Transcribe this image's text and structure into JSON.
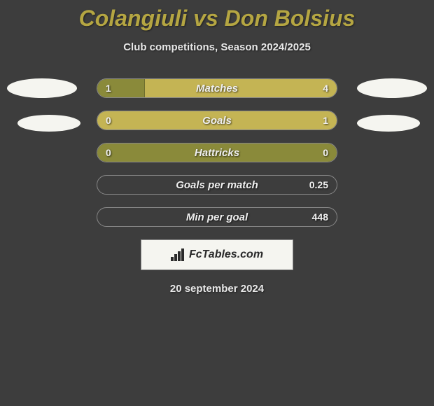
{
  "title": "Colangiuli vs Don Bolsius",
  "subtitle": "Club competitions, Season 2024/2025",
  "date": "20 september 2024",
  "logo_text": "FcTables.com",
  "colors": {
    "background": "#3d3d3d",
    "title_color": "#b5a642",
    "text_color": "#e8e8e8",
    "bar_left_fill": "#8a8a3a",
    "bar_right_fill": "#c4b454",
    "logo_bg": "#f5f5f0",
    "ellipse_color": "#f5f5f0"
  },
  "stats": [
    {
      "label": "Matches",
      "left_value": "1",
      "right_value": "4",
      "left_width_pct": 20,
      "right_width_pct": 80,
      "mode": "split"
    },
    {
      "label": "Goals",
      "left_value": "0",
      "right_value": "1",
      "left_width_pct": 0,
      "right_width_pct": 100,
      "mode": "full-right"
    },
    {
      "label": "Hattricks",
      "left_value": "0",
      "right_value": "0",
      "left_width_pct": 100,
      "right_width_pct": 0,
      "mode": "full-left"
    },
    {
      "label": "Goals per match",
      "left_value": "",
      "right_value": "0.25",
      "left_width_pct": 0,
      "right_width_pct": 0,
      "mode": "border-only"
    },
    {
      "label": "Min per goal",
      "left_value": "",
      "right_value": "448",
      "left_width_pct": 0,
      "right_width_pct": 0,
      "mode": "border-only"
    }
  ]
}
